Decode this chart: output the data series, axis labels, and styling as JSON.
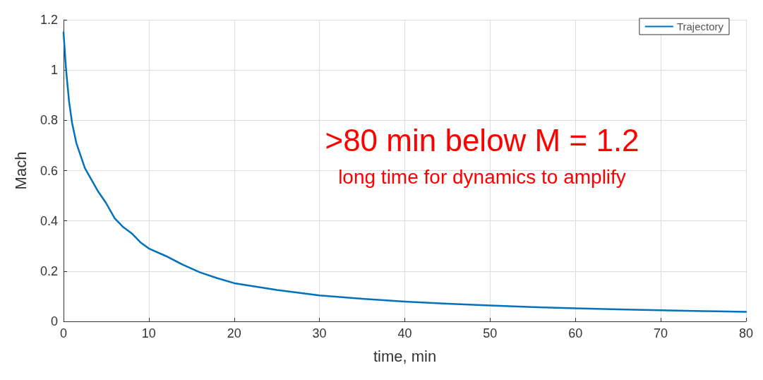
{
  "chart_data": {
    "type": "line",
    "xlabel": "time, min",
    "ylabel": "Mach",
    "series": [
      {
        "name": "Trajectory",
        "color": "#0072bd",
        "x": [
          0,
          0.3,
          0.65,
          1,
          1.5,
          2,
          2.5,
          3,
          4,
          5,
          6,
          7,
          8,
          9,
          10,
          12,
          14,
          16,
          18,
          20,
          25,
          30,
          35,
          40,
          45,
          50,
          55,
          60,
          65,
          70,
          75,
          80
        ],
        "values": [
          1.15,
          1.0,
          0.875,
          0.79,
          0.71,
          0.66,
          0.61,
          0.58,
          0.52,
          0.47,
          0.41,
          0.375,
          0.35,
          0.315,
          0.29,
          0.26,
          0.225,
          0.195,
          0.172,
          0.152,
          0.125,
          0.103,
          0.09,
          0.079,
          0.07,
          0.063,
          0.057,
          0.052,
          0.048,
          0.044,
          0.041,
          0.038
        ]
      }
    ],
    "xlim": [
      0,
      80
    ],
    "xticks": [
      0,
      10,
      20,
      30,
      40,
      50,
      60,
      70,
      80
    ],
    "ylim": [
      0,
      1.2
    ],
    "yticks": [
      0,
      0.2,
      0.4,
      0.6,
      0.8,
      1,
      1.2
    ],
    "grid": true,
    "legend": "top right",
    "marker": "none",
    "line_style": "solid",
    "annotations": [
      ">80 min below M = 1.2",
      "long time for dynamics to amplify"
    ]
  }
}
